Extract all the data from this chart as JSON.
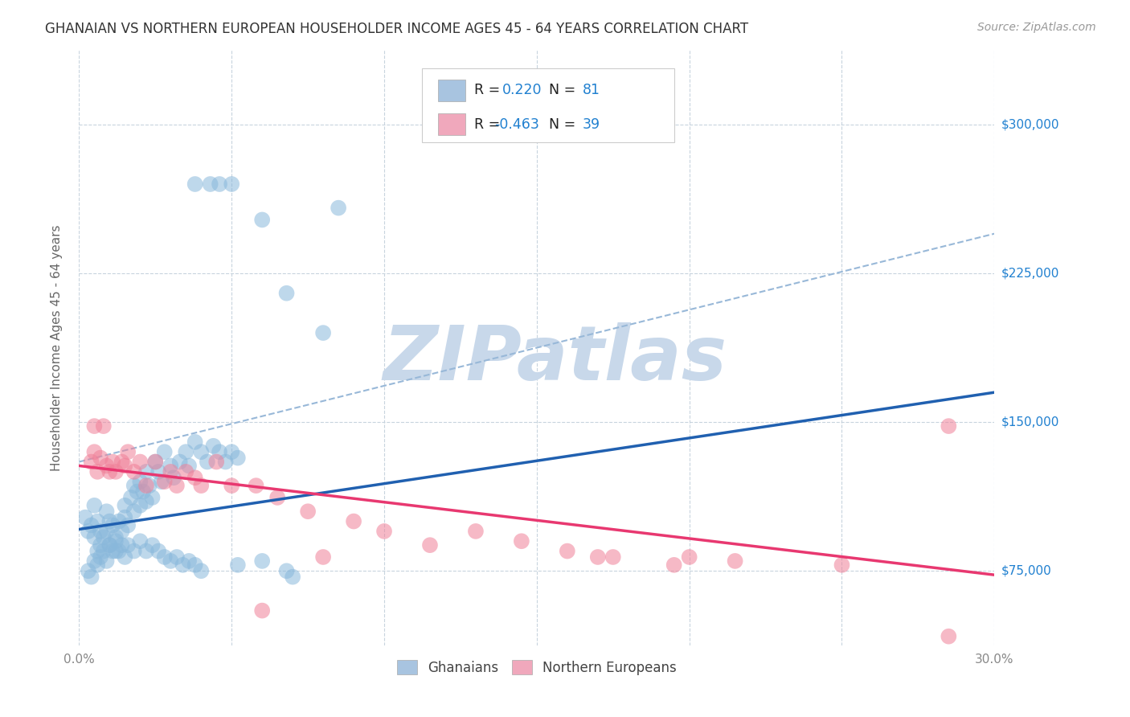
{
  "title": "GHANAIAN VS NORTHERN EUROPEAN HOUSEHOLDER INCOME AGES 45 - 64 YEARS CORRELATION CHART",
  "source": "Source: ZipAtlas.com",
  "ylabel": "Householder Income Ages 45 - 64 years",
  "xlim": [
    0.0,
    0.3
  ],
  "ylim": [
    37500,
    337500
  ],
  "xticks": [
    0.0,
    0.05,
    0.1,
    0.15,
    0.2,
    0.25,
    0.3
  ],
  "xticklabels": [
    "0.0%",
    "",
    "",
    "",
    "",
    "",
    "30.0%"
  ],
  "ytick_positions": [
    75000,
    150000,
    225000,
    300000
  ],
  "ytick_labels": [
    "$75,000",
    "$150,000",
    "$225,000",
    "$300,000"
  ],
  "legend_color1": "#a8c4e0",
  "legend_color2": "#f0a8bc",
  "dot_color_blue": "#89b8db",
  "dot_color_pink": "#f08098",
  "line_color_blue": "#2060b0",
  "line_color_pink": "#e83870",
  "line_color_dashed": "#98b8d8",
  "watermark": "ZIPatlas",
  "watermark_color": "#c8d8ea",
  "background_color": "#ffffff",
  "grid_color": "#c8d4de",
  "label_color_blue": "#2080d0",
  "title_color": "#333333",
  "tick_color": "#888888",
  "blue_line_x": [
    0.0,
    0.3
  ],
  "blue_line_y": [
    96000,
    165000
  ],
  "pink_line_x": [
    0.0,
    0.3
  ],
  "pink_line_y": [
    128000,
    73000
  ],
  "dashed_line_x": [
    0.0,
    0.3
  ],
  "dashed_line_y": [
    130000,
    245000
  ],
  "ghanaians_x": [
    0.002,
    0.003,
    0.004,
    0.005,
    0.005,
    0.006,
    0.006,
    0.007,
    0.007,
    0.008,
    0.009,
    0.009,
    0.01,
    0.01,
    0.011,
    0.012,
    0.012,
    0.013,
    0.014,
    0.015,
    0.015,
    0.016,
    0.017,
    0.018,
    0.018,
    0.019,
    0.02,
    0.02,
    0.021,
    0.022,
    0.022,
    0.023,
    0.024,
    0.025,
    0.026,
    0.027,
    0.028,
    0.03,
    0.031,
    0.033,
    0.035,
    0.036,
    0.038,
    0.04,
    0.042,
    0.044,
    0.046,
    0.048,
    0.05,
    0.052,
    0.003,
    0.004,
    0.005,
    0.006,
    0.007,
    0.008,
    0.009,
    0.01,
    0.011,
    0.012,
    0.013,
    0.014,
    0.015,
    0.016,
    0.018,
    0.02,
    0.022,
    0.024,
    0.026,
    0.028,
    0.03,
    0.032,
    0.034,
    0.036,
    0.038,
    0.04,
    0.052,
    0.06,
    0.068,
    0.07,
    0.085
  ],
  "ghanaians_y": [
    102000,
    95000,
    98000,
    92000,
    108000,
    100000,
    85000,
    95000,
    88000,
    92000,
    105000,
    95000,
    100000,
    88000,
    98000,
    92000,
    85000,
    100000,
    95000,
    102000,
    108000,
    98000,
    112000,
    118000,
    105000,
    115000,
    120000,
    108000,
    115000,
    125000,
    110000,
    118000,
    112000,
    130000,
    125000,
    120000,
    135000,
    128000,
    122000,
    130000,
    135000,
    128000,
    140000,
    135000,
    130000,
    138000,
    135000,
    130000,
    135000,
    132000,
    75000,
    72000,
    80000,
    78000,
    82000,
    85000,
    80000,
    88000,
    85000,
    90000,
    85000,
    88000,
    82000,
    88000,
    85000,
    90000,
    85000,
    88000,
    85000,
    82000,
    80000,
    82000,
    78000,
    80000,
    78000,
    75000,
    78000,
    80000,
    75000,
    72000,
    258000
  ],
  "ghanaians_outliers": [
    [
      0.038,
      270000
    ],
    [
      0.043,
      270000
    ],
    [
      0.046,
      270000
    ],
    [
      0.05,
      270000
    ],
    [
      0.06,
      252000
    ],
    [
      0.068,
      215000
    ],
    [
      0.08,
      195000
    ]
  ],
  "northern_x": [
    0.004,
    0.005,
    0.006,
    0.007,
    0.008,
    0.009,
    0.01,
    0.011,
    0.012,
    0.014,
    0.015,
    0.016,
    0.018,
    0.02,
    0.022,
    0.025,
    0.028,
    0.03,
    0.032,
    0.035,
    0.038,
    0.04,
    0.045,
    0.05,
    0.058,
    0.065,
    0.075,
    0.09,
    0.1,
    0.115,
    0.13,
    0.145,
    0.16,
    0.175,
    0.2,
    0.215,
    0.25,
    0.285
  ],
  "northern_y": [
    130000,
    135000,
    125000,
    132000,
    148000,
    128000,
    125000,
    130000,
    125000,
    130000,
    128000,
    135000,
    125000,
    130000,
    118000,
    130000,
    120000,
    125000,
    118000,
    125000,
    122000,
    118000,
    130000,
    118000,
    118000,
    112000,
    105000,
    100000,
    95000,
    88000,
    95000,
    90000,
    85000,
    82000,
    82000,
    80000,
    78000,
    148000
  ],
  "northern_outliers": [
    [
      0.005,
      148000
    ],
    [
      0.06,
      55000
    ],
    [
      0.08,
      82000
    ],
    [
      0.17,
      82000
    ],
    [
      0.195,
      78000
    ],
    [
      0.285,
      42000
    ]
  ]
}
